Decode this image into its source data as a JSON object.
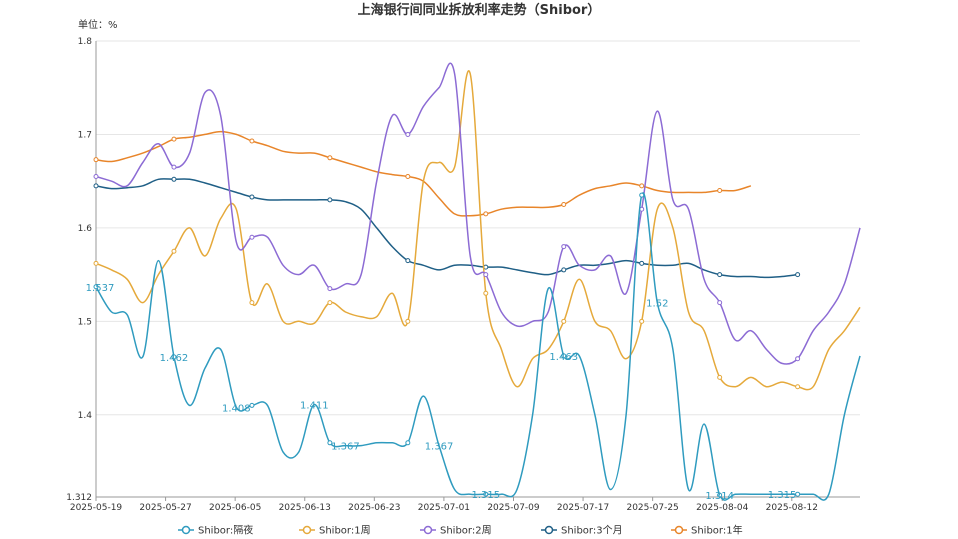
{
  "chart_data": {
    "type": "line",
    "title": "上海银行间同业拆放利率走势（Shibor）",
    "unit_label": "单位：%",
    "ylim": [
      1.312,
      1.8
    ],
    "yticks": [
      "1.312",
      "1.4",
      "1.5",
      "1.6",
      "1.7",
      "1.8"
    ],
    "x_ticks": [
      "2025-05-19",
      "2025-05-27",
      "2025-06-05",
      "2025-06-13",
      "2025-06-23",
      "2025-07-01",
      "2025-07-09",
      "2025-07-17",
      "2025-07-25",
      "2025-08-04",
      "2025-08-12"
    ],
    "colors": {
      "overnight": "#2f9bbf",
      "week1": "#e5a93b",
      "week2": "#8c6bd4",
      "month3": "#1f5f86",
      "year1": "#e8852a"
    },
    "series": [
      {
        "name": "Shibor:隔夜",
        "key": "overnight",
        "points": [
          [
            0,
            1.537
          ],
          [
            1,
            1.51
          ],
          [
            2,
            1.507
          ],
          [
            3,
            1.462
          ],
          [
            4,
            1.565
          ],
          [
            5,
            1.462
          ],
          [
            6,
            1.41
          ],
          [
            7,
            1.45
          ],
          [
            8,
            1.47
          ],
          [
            9,
            1.408
          ],
          [
            10,
            1.41
          ],
          [
            11,
            1.41
          ],
          [
            12,
            1.36
          ],
          [
            13,
            1.36
          ],
          [
            14,
            1.411
          ],
          [
            15,
            1.37
          ],
          [
            16,
            1.367
          ],
          [
            17,
            1.367
          ],
          [
            18,
            1.37
          ],
          [
            19,
            1.37
          ],
          [
            20,
            1.37
          ],
          [
            21,
            1.42
          ],
          [
            22,
            1.367
          ],
          [
            23,
            1.32
          ],
          [
            24,
            1.315
          ],
          [
            25,
            1.315
          ],
          [
            26,
            1.315
          ],
          [
            27,
            1.32
          ],
          [
            28,
            1.4
          ],
          [
            29,
            1.535
          ],
          [
            30,
            1.463
          ],
          [
            31,
            1.463
          ],
          [
            32,
            1.4
          ],
          [
            33,
            1.32
          ],
          [
            34,
            1.4
          ],
          [
            35,
            1.635
          ],
          [
            36,
            1.52
          ],
          [
            37,
            1.47
          ],
          [
            38,
            1.32
          ],
          [
            39,
            1.39
          ],
          [
            40,
            1.314
          ],
          [
            41,
            1.315
          ],
          [
            42,
            1.315
          ],
          [
            43,
            1.315
          ],
          [
            44,
            1.315
          ],
          [
            45,
            1.315
          ],
          [
            46,
            1.315
          ],
          [
            47,
            1.315
          ],
          [
            48,
            1.4
          ],
          [
            49,
            1.463
          ]
        ]
      },
      {
        "name": "Shibor:1周",
        "key": "week1",
        "points": [
          [
            0,
            1.562
          ],
          [
            1,
            1.555
          ],
          [
            2,
            1.545
          ],
          [
            3,
            1.52
          ],
          [
            4,
            1.55
          ],
          [
            5,
            1.575
          ],
          [
            6,
            1.6
          ],
          [
            7,
            1.57
          ],
          [
            8,
            1.61
          ],
          [
            9,
            1.62
          ],
          [
            10,
            1.52
          ],
          [
            11,
            1.54
          ],
          [
            12,
            1.5
          ],
          [
            13,
            1.5
          ],
          [
            14,
            1.498
          ],
          [
            15,
            1.52
          ],
          [
            16,
            1.51
          ],
          [
            17,
            1.505
          ],
          [
            18,
            1.505
          ],
          [
            19,
            1.53
          ],
          [
            20,
            1.5
          ],
          [
            21,
            1.65
          ],
          [
            22,
            1.67
          ],
          [
            23,
            1.665
          ],
          [
            24,
            1.765
          ],
          [
            25,
            1.53
          ],
          [
            26,
            1.47
          ],
          [
            27,
            1.43
          ],
          [
            28,
            1.46
          ],
          [
            29,
            1.47
          ],
          [
            30,
            1.5
          ],
          [
            31,
            1.545
          ],
          [
            32,
            1.5
          ],
          [
            33,
            1.49
          ],
          [
            34,
            1.46
          ],
          [
            35,
            1.5
          ],
          [
            36,
            1.62
          ],
          [
            37,
            1.6
          ],
          [
            38,
            1.51
          ],
          [
            39,
            1.49
          ],
          [
            40,
            1.44
          ],
          [
            41,
            1.43
          ],
          [
            42,
            1.44
          ],
          [
            43,
            1.43
          ],
          [
            44,
            1.435
          ],
          [
            45,
            1.43
          ],
          [
            46,
            1.43
          ],
          [
            47,
            1.47
          ],
          [
            48,
            1.49
          ],
          [
            49,
            1.515
          ]
        ]
      },
      {
        "name": "Shibor:2周",
        "key": "week2",
        "points": [
          [
            0,
            1.655
          ],
          [
            1,
            1.65
          ],
          [
            2,
            1.645
          ],
          [
            3,
            1.67
          ],
          [
            4,
            1.69
          ],
          [
            5,
            1.665
          ],
          [
            6,
            1.68
          ],
          [
            7,
            1.745
          ],
          [
            8,
            1.72
          ],
          [
            9,
            1.585
          ],
          [
            10,
            1.59
          ],
          [
            11,
            1.59
          ],
          [
            12,
            1.56
          ],
          [
            13,
            1.55
          ],
          [
            14,
            1.56
          ],
          [
            15,
            1.535
          ],
          [
            16,
            1.54
          ],
          [
            17,
            1.55
          ],
          [
            18,
            1.65
          ],
          [
            19,
            1.72
          ],
          [
            20,
            1.7
          ],
          [
            21,
            1.73
          ],
          [
            22,
            1.75
          ],
          [
            23,
            1.765
          ],
          [
            24,
            1.57
          ],
          [
            25,
            1.55
          ],
          [
            26,
            1.51
          ],
          [
            27,
            1.495
          ],
          [
            28,
            1.5
          ],
          [
            29,
            1.51
          ],
          [
            30,
            1.58
          ],
          [
            31,
            1.56
          ],
          [
            32,
            1.555
          ],
          [
            33,
            1.57
          ],
          [
            34,
            1.53
          ],
          [
            35,
            1.62
          ],
          [
            36,
            1.725
          ],
          [
            37,
            1.63
          ],
          [
            38,
            1.62
          ],
          [
            39,
            1.545
          ],
          [
            40,
            1.52
          ],
          [
            41,
            1.48
          ],
          [
            42,
            1.49
          ],
          [
            43,
            1.47
          ],
          [
            44,
            1.455
          ],
          [
            45,
            1.46
          ],
          [
            46,
            1.49
          ],
          [
            47,
            1.51
          ],
          [
            48,
            1.54
          ],
          [
            49,
            1.6
          ]
        ]
      },
      {
        "name": "Shibor:3个月",
        "key": "month3",
        "points": [
          [
            0,
            1.645
          ],
          [
            1,
            1.642
          ],
          [
            2,
            1.643
          ],
          [
            3,
            1.645
          ],
          [
            4,
            1.652
          ],
          [
            5,
            1.652
          ],
          [
            6,
            1.652
          ],
          [
            7,
            1.648
          ],
          [
            8,
            1.643
          ],
          [
            9,
            1.638
          ],
          [
            10,
            1.633
          ],
          [
            11,
            1.63
          ],
          [
            12,
            1.63
          ],
          [
            13,
            1.63
          ],
          [
            14,
            1.63
          ],
          [
            15,
            1.63
          ],
          [
            16,
            1.628
          ],
          [
            17,
            1.62
          ],
          [
            18,
            1.6
          ],
          [
            19,
            1.58
          ],
          [
            20,
            1.565
          ],
          [
            21,
            1.56
          ],
          [
            22,
            1.555
          ],
          [
            23,
            1.56
          ],
          [
            24,
            1.56
          ],
          [
            25,
            1.558
          ],
          [
            26,
            1.558
          ],
          [
            27,
            1.555
          ],
          [
            28,
            1.552
          ],
          [
            29,
            1.55
          ],
          [
            30,
            1.555
          ],
          [
            31,
            1.56
          ],
          [
            32,
            1.56
          ],
          [
            33,
            1.562
          ],
          [
            34,
            1.565
          ],
          [
            35,
            1.562
          ],
          [
            36,
            1.56
          ],
          [
            37,
            1.56
          ],
          [
            38,
            1.562
          ],
          [
            39,
            1.555
          ],
          [
            40,
            1.55
          ],
          [
            41,
            1.548
          ],
          [
            42,
            1.548
          ],
          [
            43,
            1.547
          ],
          [
            44,
            1.548
          ],
          [
            45,
            1.55
          ]
        ]
      },
      {
        "name": "Shibor:1年",
        "key": "year1",
        "points": [
          [
            0,
            1.673
          ],
          [
            1,
            1.671
          ],
          [
            2,
            1.675
          ],
          [
            3,
            1.68
          ],
          [
            4,
            1.687
          ],
          [
            5,
            1.695
          ],
          [
            6,
            1.697
          ],
          [
            7,
            1.7
          ],
          [
            8,
            1.703
          ],
          [
            9,
            1.7
          ],
          [
            10,
            1.693
          ],
          [
            11,
            1.688
          ],
          [
            12,
            1.682
          ],
          [
            13,
            1.68
          ],
          [
            14,
            1.68
          ],
          [
            15,
            1.675
          ],
          [
            16,
            1.67
          ],
          [
            17,
            1.665
          ],
          [
            18,
            1.66
          ],
          [
            19,
            1.657
          ],
          [
            20,
            1.655
          ],
          [
            21,
            1.65
          ],
          [
            22,
            1.632
          ],
          [
            23,
            1.615
          ],
          [
            24,
            1.613
          ],
          [
            25,
            1.615
          ],
          [
            26,
            1.62
          ],
          [
            27,
            1.622
          ],
          [
            28,
            1.622
          ],
          [
            29,
            1.622
          ],
          [
            30,
            1.625
          ],
          [
            31,
            1.635
          ],
          [
            32,
            1.642
          ],
          [
            33,
            1.645
          ],
          [
            34,
            1.648
          ],
          [
            35,
            1.645
          ],
          [
            36,
            1.64
          ],
          [
            37,
            1.638
          ],
          [
            38,
            1.638
          ],
          [
            39,
            1.638
          ],
          [
            40,
            1.64
          ],
          [
            41,
            1.64
          ],
          [
            42,
            1.645
          ]
        ]
      }
    ],
    "data_labels": [
      {
        "text": "1.537",
        "series": "overnight",
        "i": 0
      },
      {
        "text": "1.462",
        "series": "overnight",
        "i": 5
      },
      {
        "text": "1.408",
        "series": "overnight",
        "i": 9
      },
      {
        "text": "1.411",
        "series": "overnight",
        "i": 14
      },
      {
        "text": "1.367",
        "series": "overnight",
        "i": 16
      },
      {
        "text": "1.367",
        "series": "overnight",
        "i": 22
      },
      {
        "text": "1.315",
        "series": "overnight",
        "i": 25
      },
      {
        "text": "1.463",
        "series": "overnight",
        "i": 30
      },
      {
        "text": "1.52",
        "series": "overnight",
        "i": 36
      },
      {
        "text": "1.314",
        "series": "overnight",
        "i": 40
      },
      {
        "text": "1.315",
        "series": "overnight",
        "i": 44
      }
    ],
    "legend_position": "bottom-center",
    "grid": true
  }
}
